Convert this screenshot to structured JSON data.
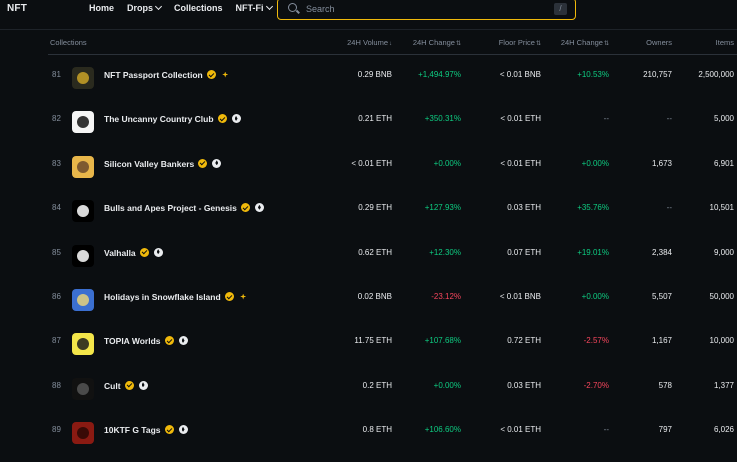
{
  "app": {
    "logo": "NFT"
  },
  "nav": {
    "items": [
      {
        "label": "Home",
        "dropdown": false
      },
      {
        "label": "Drops",
        "dropdown": true
      },
      {
        "label": "Collections",
        "dropdown": false
      },
      {
        "label": "NFT-Fi",
        "dropdown": true
      }
    ]
  },
  "search": {
    "placeholder": "Search",
    "shortcut": "/"
  },
  "table": {
    "headers": {
      "collections": "Collections",
      "volume": "24H Volume",
      "change": "24H Change",
      "floor": "Floor Price",
      "floor_change": "24H Change",
      "owners": "Owners",
      "items": "Items"
    },
    "rows": [
      {
        "rank": "81",
        "name": "NFT Passport Collection",
        "chain": "bnb",
        "volume": "0.29 BNB",
        "change": "+1,494.97%",
        "change_dir": "pos",
        "floor": "< 0.01 BNB",
        "floor_change": "+10.53%",
        "floor_change_dir": "pos",
        "owners": "210,757",
        "items": "2,500,000",
        "thumb_color": "#2a2a1e",
        "thumb_accent": "#c9a227"
      },
      {
        "rank": "82",
        "name": "The Uncanny Country Club",
        "chain": "eth",
        "volume": "0.21 ETH",
        "change": "+350.31%",
        "change_dir": "pos",
        "floor": "< 0.01 ETH",
        "floor_change": "--",
        "floor_change_dir": "neutral",
        "owners": "--",
        "items": "5,000",
        "thumb_color": "#f5f5f5",
        "thumb_accent": "#111111"
      },
      {
        "rank": "83",
        "name": "Silicon Valley Bankers",
        "chain": "eth",
        "volume": "< 0.01 ETH",
        "change": "+0.00%",
        "change_dir": "pos",
        "floor": "< 0.01 ETH",
        "floor_change": "+0.00%",
        "floor_change_dir": "pos",
        "owners": "1,673",
        "items": "6,901",
        "thumb_color": "#e8b64a",
        "thumb_accent": "#6b4a2b"
      },
      {
        "rank": "84",
        "name": "Bulls and Apes Project - Genesis",
        "chain": "eth",
        "volume": "0.29 ETH",
        "change": "+127.93%",
        "change_dir": "pos",
        "floor": "0.03 ETH",
        "floor_change": "+35.76%",
        "floor_change_dir": "pos",
        "owners": "--",
        "items": "10,501",
        "thumb_color": "#000000",
        "thumb_accent": "#ffffff"
      },
      {
        "rank": "85",
        "name": "Valhalla",
        "chain": "eth",
        "volume": "0.62 ETH",
        "change": "+12.30%",
        "change_dir": "pos",
        "floor": "0.07 ETH",
        "floor_change": "+19.01%",
        "floor_change_dir": "pos",
        "owners": "2,384",
        "items": "9,000",
        "thumb_color": "#000000",
        "thumb_accent": "#ffffff"
      },
      {
        "rank": "86",
        "name": "Holidays in Snowflake Island",
        "chain": "bnb",
        "volume": "0.02 BNB",
        "change": "-23.12%",
        "change_dir": "neg",
        "floor": "< 0.01 BNB",
        "floor_change": "+0.00%",
        "floor_change_dir": "pos",
        "owners": "5,507",
        "items": "50,000",
        "thumb_color": "#3b6fd0",
        "thumb_accent": "#e8d27a"
      },
      {
        "rank": "87",
        "name": "TOPIA Worlds",
        "chain": "eth",
        "volume": "11.75 ETH",
        "change": "+107.68%",
        "change_dir": "pos",
        "floor": "0.72 ETH",
        "floor_change": "-2.57%",
        "floor_change_dir": "neg",
        "owners": "1,167",
        "items": "10,000",
        "thumb_color": "#f4e64a",
        "thumb_accent": "#1b1b1b"
      },
      {
        "rank": "88",
        "name": "Cult",
        "chain": "eth",
        "volume": "0.2 ETH",
        "change": "+0.00%",
        "change_dir": "pos",
        "floor": "0.03 ETH",
        "floor_change": "-2.70%",
        "floor_change_dir": "neg",
        "owners": "578",
        "items": "1,377",
        "thumb_color": "#111111",
        "thumb_accent": "#555555"
      },
      {
        "rank": "89",
        "name": "10KTF G Tags",
        "chain": "eth",
        "volume": "0.8 ETH",
        "change": "+106.60%",
        "change_dir": "pos",
        "floor": "< 0.01 ETH",
        "floor_change": "--",
        "floor_change_dir": "neutral",
        "owners": "797",
        "items": "6,026",
        "thumb_color": "#8a1a12",
        "thumb_accent": "#2a0805"
      }
    ]
  }
}
